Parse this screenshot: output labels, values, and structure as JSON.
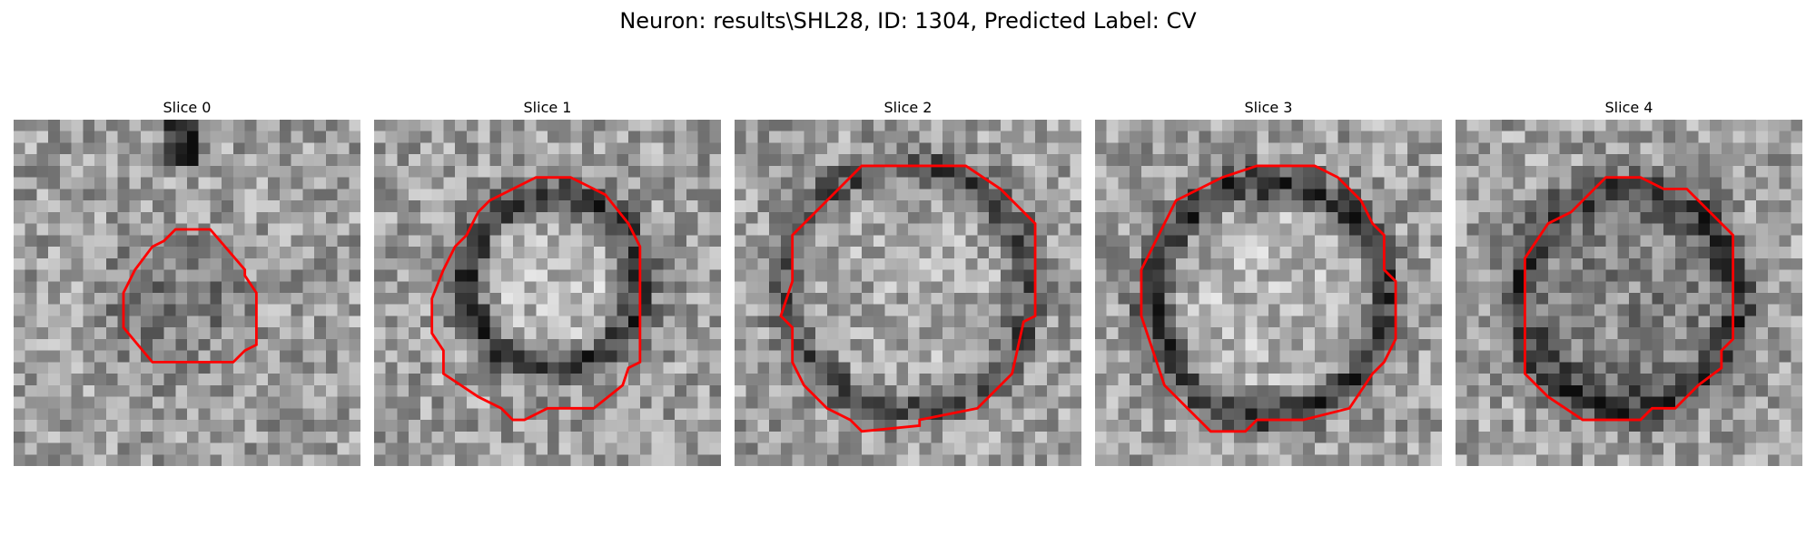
{
  "figure": {
    "title": "Neuron: results\\SHL28, ID: 1304, Predicted Label: CV"
  },
  "colors": {
    "contour": "#ff0000",
    "background": "#ffffff"
  },
  "panels": [
    {
      "title": "Slice 0"
    },
    {
      "title": "Slice 1"
    },
    {
      "title": "Slice 2"
    },
    {
      "title": "Slice 3"
    },
    {
      "title": "Slice 4"
    }
  ]
}
